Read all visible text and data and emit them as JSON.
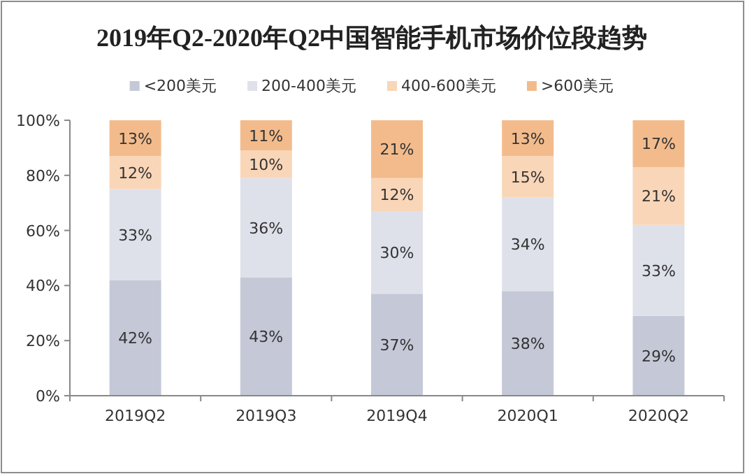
{
  "chart_data": {
    "type": "bar",
    "title": "2019年Q2-2020年Q2中国智能手机市场价位段趋势",
    "stacked": true,
    "legend": "top",
    "grid": false,
    "categories": [
      "2019Q2",
      "2019Q3",
      "2019Q4",
      "2020Q1",
      "2020Q2"
    ],
    "ylim": [
      0,
      100
    ],
    "yticks": [
      {
        "value": 0,
        "label": "0%"
      },
      {
        "value": 20,
        "label": "20%"
      },
      {
        "value": 40,
        "label": "40%"
      },
      {
        "value": 60,
        "label": "60%"
      },
      {
        "value": 80,
        "label": "80%"
      },
      {
        "value": 100,
        "label": "100%"
      }
    ],
    "series": [
      {
        "name": "<200美元",
        "color": "#c5c8d7",
        "values": [
          42,
          43,
          37,
          38,
          29
        ],
        "value_labels": [
          "42%",
          "43%",
          "37%",
          "38%",
          "29%"
        ]
      },
      {
        "name": "200-400美元",
        "color": "#dfe1ea",
        "values": [
          33,
          36,
          30,
          34,
          33
        ],
        "value_labels": [
          "33%",
          "36%",
          "30%",
          "34%",
          "33%"
        ]
      },
      {
        "name": "400-600美元",
        "color": "#f9d6b8",
        "values": [
          12,
          10,
          12,
          15,
          21
        ],
        "value_labels": [
          "12%",
          "10%",
          "12%",
          "15%",
          "21%"
        ]
      },
      {
        "name": ">600美元",
        "color": "#f3bb8c",
        "values": [
          13,
          11,
          21,
          13,
          17
        ],
        "value_labels": [
          "13%",
          "11%",
          "21%",
          "13%",
          "17%"
        ]
      }
    ]
  }
}
